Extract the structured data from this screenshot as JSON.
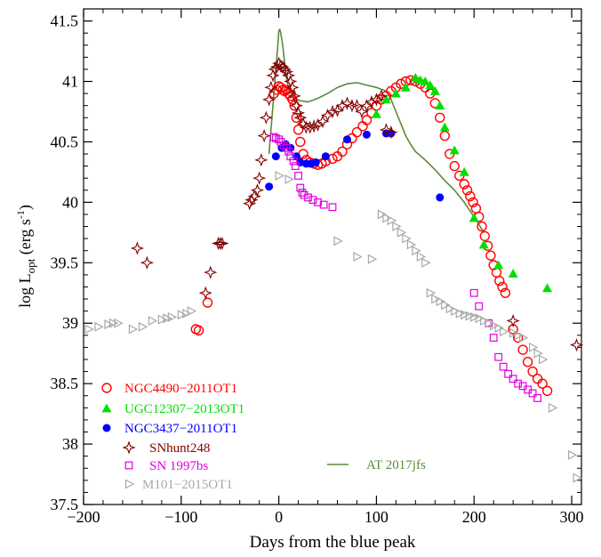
{
  "chart_data": {
    "type": "scatter",
    "xlabel": "Days from the blue peak",
    "ylabel": {
      "prefix": "log L",
      "subscript": "opt",
      "units_open": " (erg s",
      "units_sup": "-1",
      "units_close": ")"
    },
    "xlim": [
      -200,
      310
    ],
    "ylim": [
      37.5,
      41.6
    ],
    "xticks": [
      -200,
      -100,
      0,
      100,
      200,
      300
    ],
    "yticks": [
      37.5,
      38,
      38.5,
      39,
      39.5,
      40,
      40.5,
      41,
      41.5
    ],
    "xtick_labels": [
      "−200",
      "−100",
      "0",
      "100",
      "200",
      "300"
    ],
    "ytick_labels": [
      "37.5",
      "38",
      "38.5",
      "39",
      "39.5",
      "40",
      "40.5",
      "41",
      "41.5"
    ],
    "series": [
      {
        "name": "NGC4490−2011OT1",
        "marker": "open-circle",
        "color": "#ff0000",
        "x": [
          -85,
          -82,
          -73,
          -5,
          -2,
          0,
          2,
          4,
          6,
          8,
          10,
          12,
          14,
          16,
          18,
          20,
          22,
          25,
          28,
          32,
          36,
          40,
          44,
          48,
          55,
          60,
          65,
          70,
          75,
          80,
          86,
          90,
          95,
          100,
          105,
          110,
          115,
          120,
          125,
          130,
          135,
          140,
          145,
          150,
          155,
          160,
          165,
          170,
          175,
          180,
          185,
          190,
          193,
          196,
          199,
          202,
          205,
          208,
          211,
          214,
          217,
          220,
          223,
          226,
          229,
          232,
          240,
          245,
          250,
          255,
          260,
          265,
          270,
          275
        ],
        "y": [
          38.95,
          38.94,
          39.17,
          40.9,
          40.93,
          40.96,
          40.95,
          40.93,
          40.92,
          40.93,
          40.9,
          40.88,
          40.85,
          40.8,
          40.7,
          40.6,
          40.5,
          40.4,
          40.35,
          40.33,
          40.32,
          40.31,
          40.32,
          40.34,
          40.36,
          40.38,
          40.42,
          40.48,
          40.53,
          40.58,
          40.63,
          40.68,
          40.74,
          40.8,
          40.85,
          40.88,
          40.92,
          40.95,
          40.98,
          41.0,
          41.01,
          41.0,
          40.98,
          40.95,
          40.9,
          40.82,
          40.7,
          40.55,
          40.4,
          40.3,
          40.22,
          40.15,
          40.1,
          40.05,
          40.0,
          39.95,
          39.88,
          39.8,
          39.72,
          39.64,
          39.56,
          39.48,
          39.42,
          39.35,
          39.3,
          39.25,
          38.95,
          38.88,
          38.78,
          38.68,
          38.6,
          38.54,
          38.5,
          38.44
        ]
      },
      {
        "name": "UGC12307−2013OT1",
        "marker": "filled-triangle",
        "color": "#00e000",
        "x": [
          100,
          110,
          120,
          130,
          140,
          145,
          150,
          155,
          160,
          165,
          170,
          180,
          190,
          200,
          210,
          225,
          240,
          275
        ],
        "y": [
          40.73,
          40.85,
          40.9,
          40.95,
          41.03,
          41.01,
          41.0,
          40.97,
          40.92,
          40.8,
          40.62,
          40.43,
          40.25,
          39.87,
          39.65,
          39.48,
          39.41,
          39.29
        ]
      },
      {
        "name": "NGC3437−2011OT1",
        "marker": "filled-circle",
        "color": "#0000ff",
        "x": [
          -10,
          -3,
          3,
          7,
          12,
          18,
          22,
          28,
          33,
          38,
          48,
          70,
          90,
          110,
          115,
          165
        ],
        "y": [
          40.13,
          40.38,
          40.45,
          40.48,
          40.45,
          40.38,
          40.33,
          40.32,
          40.32,
          40.33,
          40.38,
          40.52,
          40.56,
          40.57,
          40.57,
          40.04
        ]
      },
      {
        "name": "SNhunt248",
        "marker": "star4",
        "color": "#800000",
        "x": [
          -145,
          -135,
          -75,
          -70,
          -62,
          -60,
          -58,
          -30,
          -28,
          -25,
          -22,
          -20,
          -18,
          -15,
          -13,
          -10,
          -8,
          -6,
          -4,
          -2,
          0,
          2,
          4,
          6,
          8,
          10,
          12,
          14,
          16,
          18,
          20,
          22,
          25,
          28,
          32,
          36,
          40,
          45,
          50,
          55,
          60,
          65,
          70,
          75,
          80,
          85,
          90,
          95,
          100,
          105,
          110,
          115,
          240,
          305
        ],
        "y": [
          39.62,
          39.5,
          39.25,
          39.42,
          39.66,
          39.66,
          39.66,
          39.99,
          40.02,
          40.05,
          40.1,
          40.2,
          40.35,
          40.55,
          40.7,
          40.85,
          40.95,
          41.05,
          41.1,
          41.12,
          41.15,
          41.13,
          41.12,
          41.1,
          41.08,
          41.05,
          41.0,
          40.95,
          40.88,
          40.8,
          40.74,
          40.7,
          40.65,
          40.62,
          40.62,
          40.63,
          40.64,
          40.67,
          40.72,
          40.75,
          40.76,
          40.8,
          40.82,
          40.8,
          40.8,
          40.75,
          40.8,
          40.83,
          40.85,
          40.88,
          40.6,
          40.58,
          39.02,
          38.82
        ]
      },
      {
        "name": "SN 1997bs",
        "marker": "open-square",
        "color": "#e000e0",
        "x": [
          -5,
          -3,
          0,
          2,
          5,
          8,
          10,
          12,
          15,
          17,
          20,
          22,
          24,
          26,
          30,
          35,
          40,
          46,
          55,
          200,
          205,
          215,
          220,
          225,
          230,
          235,
          240,
          245,
          250,
          255,
          260,
          265
        ],
        "y": [
          40.54,
          40.53,
          40.52,
          40.5,
          40.47,
          40.45,
          40.42,
          40.38,
          40.34,
          40.3,
          40.22,
          40.12,
          40.08,
          40.06,
          40.04,
          40.02,
          40.0,
          39.98,
          39.96,
          39.25,
          39.14,
          39.0,
          38.88,
          38.72,
          38.64,
          38.58,
          38.54,
          38.5,
          38.48,
          38.45,
          38.42,
          38.38
        ]
      },
      {
        "name": "M101−2015OT1",
        "marker": "open-triangle-right",
        "color": "#a8a8a8",
        "x": [
          -195,
          -185,
          -175,
          -170,
          -165,
          -150,
          -140,
          -130,
          -120,
          -115,
          -110,
          -100,
          -95,
          -90,
          0,
          10,
          60,
          80,
          95,
          105,
          110,
          115,
          120,
          125,
          130,
          135,
          140,
          145,
          150,
          155,
          160,
          165,
          170,
          175,
          180,
          185,
          190,
          195,
          200,
          205,
          210,
          215,
          220,
          225,
          230,
          240,
          245,
          250,
          260,
          265,
          270,
          280,
          300,
          305
        ],
        "y": [
          38.95,
          38.97,
          38.99,
          39.0,
          39.0,
          38.95,
          38.97,
          39.02,
          39.03,
          39.04,
          39.05,
          39.07,
          39.08,
          39.1,
          40.22,
          40.19,
          39.68,
          39.55,
          39.53,
          39.9,
          39.87,
          39.85,
          39.8,
          39.75,
          39.7,
          39.65,
          39.6,
          39.55,
          39.5,
          39.25,
          39.2,
          39.18,
          39.15,
          39.12,
          39.1,
          39.08,
          39.07,
          39.06,
          39.05,
          39.04,
          39.02,
          39.0,
          38.98,
          38.96,
          38.93,
          38.92,
          38.9,
          38.88,
          38.8,
          38.75,
          38.7,
          38.3,
          37.91,
          37.72
        ]
      },
      {
        "name": "AT 2017jfs",
        "marker": "line",
        "color": "#5a8a3a",
        "x": [
          -10,
          -6,
          -3,
          -1,
          0,
          1,
          2,
          4,
          6,
          8,
          10,
          14,
          18,
          22,
          30,
          40,
          50,
          60,
          70,
          80,
          90,
          100,
          110,
          115,
          120,
          125,
          130,
          135,
          140,
          150,
          160,
          170,
          180,
          190,
          200,
          210
        ],
        "y": [
          40.4,
          40.8,
          41.1,
          41.3,
          41.42,
          41.43,
          41.4,
          41.3,
          41.15,
          41.02,
          40.95,
          40.88,
          40.85,
          40.84,
          40.83,
          40.86,
          40.9,
          40.95,
          40.98,
          40.99,
          40.97,
          40.95,
          40.92,
          40.85,
          40.75,
          40.65,
          40.55,
          40.48,
          40.42,
          40.35,
          40.27,
          40.18,
          40.1,
          40.0,
          39.88,
          39.75
        ]
      }
    ],
    "legend": [
      {
        "label": "NGC4490−2011OT1",
        "marker": "open-circle",
        "color": "#ff0000"
      },
      {
        "label": "UGC12307−2013OT1",
        "marker": "filled-triangle",
        "color": "#00e000"
      },
      {
        "label": "NGC3437−2011OT1",
        "marker": "filled-circle",
        "color": "#0000ff"
      },
      {
        "label": "SNhunt248",
        "marker": "star4",
        "color": "#800000"
      },
      {
        "label": "SN 1997bs",
        "marker": "open-square",
        "color": "#e000e0"
      },
      {
        "label": "M101−2015OT1",
        "marker": "open-triangle-right",
        "color": "#a8a8a8"
      },
      {
        "label": "AT 2017jfs",
        "marker": "line",
        "color": "#5a8a3a"
      }
    ],
    "grid": false,
    "legend_placement": "bottom-left"
  }
}
